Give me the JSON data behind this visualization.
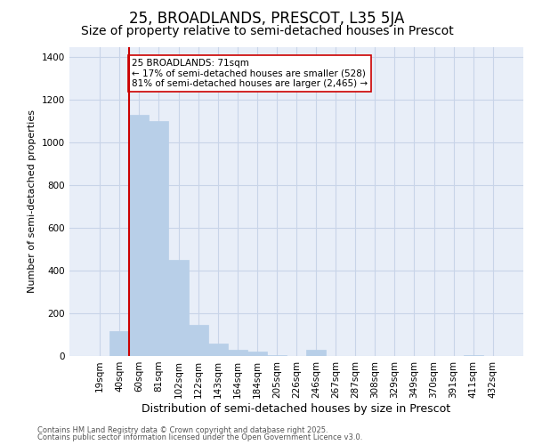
{
  "title": "25, BROADLANDS, PRESCOT, L35 5JA",
  "subtitle": "Size of property relative to semi-detached houses in Prescot",
  "xlabel": "Distribution of semi-detached houses by size in Prescot",
  "ylabel": "Number of semi-detached properties",
  "categories": [
    "19sqm",
    "40sqm",
    "60sqm",
    "81sqm",
    "102sqm",
    "122sqm",
    "143sqm",
    "164sqm",
    "184sqm",
    "205sqm",
    "226sqm",
    "246sqm",
    "267sqm",
    "287sqm",
    "308sqm",
    "329sqm",
    "349sqm",
    "370sqm",
    "391sqm",
    "411sqm",
    "432sqm"
  ],
  "values": [
    0,
    115,
    1130,
    1100,
    450,
    145,
    60,
    30,
    20,
    5,
    0,
    30,
    0,
    0,
    0,
    0,
    0,
    0,
    0,
    5,
    0
  ],
  "bar_color": "#b8cfe8",
  "bar_edge_color": "#b8cfe8",
  "grid_color": "#c8d4e8",
  "background_color": "#e8eef8",
  "annotation_box_color": "#ffffff",
  "annotation_box_edge_color": "#cc0000",
  "annotation_text": "25 BROADLANDS: 71sqm\n← 17% of semi-detached houses are smaller (528)\n81% of semi-detached houses are larger (2,465) →",
  "annotation_fontsize": 7.5,
  "vline_color": "#cc0000",
  "title_fontsize": 12,
  "subtitle_fontsize": 10,
  "xlabel_fontsize": 9,
  "ylabel_fontsize": 8,
  "tick_fontsize": 7.5,
  "footnote1": "Contains HM Land Registry data © Crown copyright and database right 2025.",
  "footnote2": "Contains public sector information licensed under the Open Government Licence v3.0.",
  "ylim": [
    0,
    1450
  ],
  "yticks": [
    0,
    200,
    400,
    600,
    800,
    1000,
    1200,
    1400
  ],
  "vline_pos": 1.5
}
